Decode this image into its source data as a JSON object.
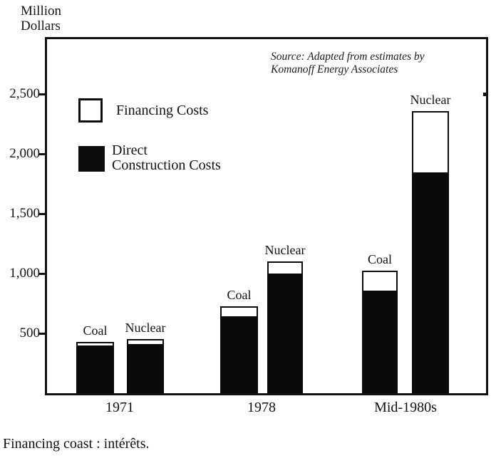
{
  "y_axis": {
    "title_line1": "Million",
    "title_line2": "Dollars"
  },
  "source_note": {
    "line1": "Source: Adapted from estimates by",
    "line2": "Komanoff Energy Associates"
  },
  "legend": {
    "financing_label": "Financing Costs",
    "construction_line1": "Direct",
    "construction_line2": "Construction Costs"
  },
  "caption": "Financing coast : intérêts.",
  "chart_data": {
    "type": "bar",
    "stacked": true,
    "title": "",
    "ylabel": "Million Dollars",
    "xlabel": "",
    "unit": "Million Dollars",
    "grid": false,
    "legend_position": "top-left-inside",
    "ylim": [
      0,
      2950
    ],
    "y_ticks": [
      {
        "label": "500",
        "value": 500
      },
      {
        "label": "1,000",
        "value": 1000
      },
      {
        "label": "1,500",
        "value": 1500
      },
      {
        "label": "2,000",
        "value": 2000
      },
      {
        "label": "2,500",
        "value": 2500
      }
    ],
    "categories": [
      "1971",
      "1978",
      "Mid-1980s"
    ],
    "series": [
      {
        "name": "Direct Construction Costs",
        "color": "#0a0a0a"
      },
      {
        "name": "Financing Costs",
        "color": "#ffffff"
      }
    ],
    "bars": [
      {
        "category": "1971",
        "label": "Coal",
        "direct_construction": 400,
        "financing": 30
      },
      {
        "category": "1971",
        "label": "Nuclear",
        "direct_construction": 410,
        "financing": 40
      },
      {
        "category": "1978",
        "label": "Coal",
        "direct_construction": 640,
        "financing": 85
      },
      {
        "category": "1978",
        "label": "Nuclear",
        "direct_construction": 1000,
        "financing": 100
      },
      {
        "category": "Mid-1980s",
        "label": "Coal",
        "direct_construction": 860,
        "financing": 165
      },
      {
        "category": "Mid-1980s",
        "label": "Nuclear",
        "direct_construction": 1850,
        "financing": 510
      }
    ]
  }
}
